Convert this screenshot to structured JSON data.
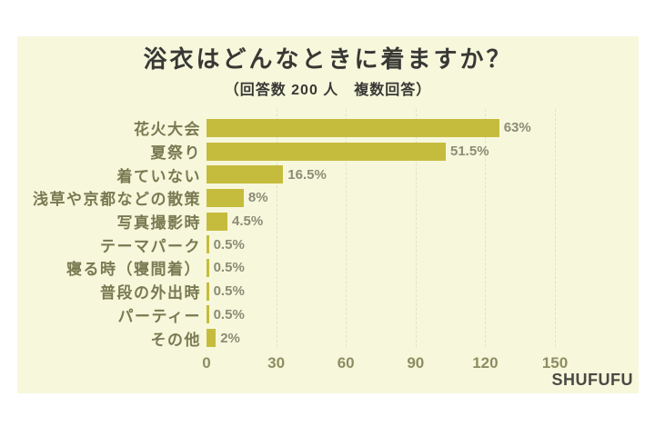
{
  "title": "浴衣はどんなときに着ますか？",
  "subtitle": "（回答数 200 人　複数回答）",
  "watermark": "SHUFUFU",
  "colors": {
    "page_background": "#ffffff",
    "panel_background": "#f7f7dc",
    "bar": "#c5bc3e",
    "category_label": "#7a7a52",
    "value_label": "#8c8c76",
    "axis_label": "#8d8d62",
    "title_text": "#383835",
    "gridline": "#e2e2c4",
    "watermark_text": "#4a4a44"
  },
  "chart_data": {
    "type": "bar",
    "orientation": "horizontal",
    "title": "浴衣はどんなときに着ますか？",
    "subtitle": "（回答数 200 人　複数回答）",
    "respondents": 200,
    "multiple_answers": true,
    "categories": [
      "花火大会",
      "夏祭り",
      "着ていない",
      "浅草や京都などの散策",
      "写真撮影時",
      "テーマパーク",
      "寝る時（寝間着）",
      "普段の外出時",
      "パーティー",
      "その他"
    ],
    "values_percent": [
      63,
      51.5,
      16.5,
      8,
      4.5,
      0.5,
      0.5,
      0.5,
      0.5,
      2
    ],
    "value_labels": [
      "63%",
      "51.5%",
      "16.5%",
      "8%",
      "4.5%",
      "0.5%",
      "0.5%",
      "0.5%",
      "0.5%",
      "2%"
    ],
    "values_people": [
      126,
      103,
      33,
      16,
      9,
      1,
      1,
      1,
      1,
      4
    ],
    "x_axis_ticks": [
      0,
      30,
      60,
      90,
      120,
      150
    ],
    "xlim": [
      0,
      150
    ],
    "xlabel": "",
    "ylabel": "",
    "grid": "vertical-dashed",
    "legend": "none"
  }
}
